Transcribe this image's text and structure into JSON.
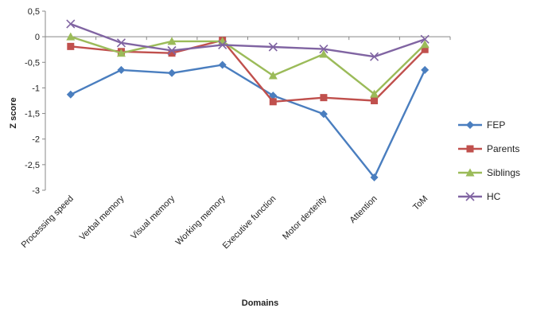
{
  "chart_data": {
    "type": "line",
    "categories": [
      "Processing speed",
      "Verbal memory",
      "Visual memory",
      "Working memory",
      "Executive function",
      "Motor dexterity",
      "Attention",
      "ToM"
    ],
    "series": [
      {
        "name": "FEP",
        "color": "#4a7ebf",
        "marker": "diamond",
        "values": [
          -1.13,
          -0.65,
          -0.71,
          -0.55,
          -1.15,
          -1.51,
          -2.75,
          -0.65
        ]
      },
      {
        "name": "Parents",
        "color": "#c0504d",
        "marker": "square",
        "values": [
          -0.19,
          -0.29,
          -0.32,
          -0.07,
          -1.27,
          -1.19,
          -1.25,
          -0.25
        ]
      },
      {
        "name": "Siblings",
        "color": "#9bbb59",
        "marker": "triangle",
        "values": [
          0.0,
          -0.32,
          -0.09,
          -0.09,
          -0.76,
          -0.34,
          -1.12,
          -0.15
        ]
      },
      {
        "name": "HC",
        "color": "#8064a2",
        "marker": "x",
        "values": [
          0.25,
          -0.12,
          -0.27,
          -0.16,
          -0.2,
          -0.24,
          -0.39,
          -0.05
        ]
      }
    ],
    "ylabel": "Z score",
    "xlabel": "Domains",
    "ylim": [
      -3,
      0.5
    ],
    "yticks": [
      0.5,
      0,
      -0.5,
      -1,
      -1.5,
      -2,
      -2.5,
      -3
    ],
    "ytick_labels": [
      "0,5",
      "0",
      "-0,5",
      "-1",
      "-1,5",
      "-2",
      "-2,5",
      "-3"
    ],
    "grid": false,
    "legend": "right"
  }
}
